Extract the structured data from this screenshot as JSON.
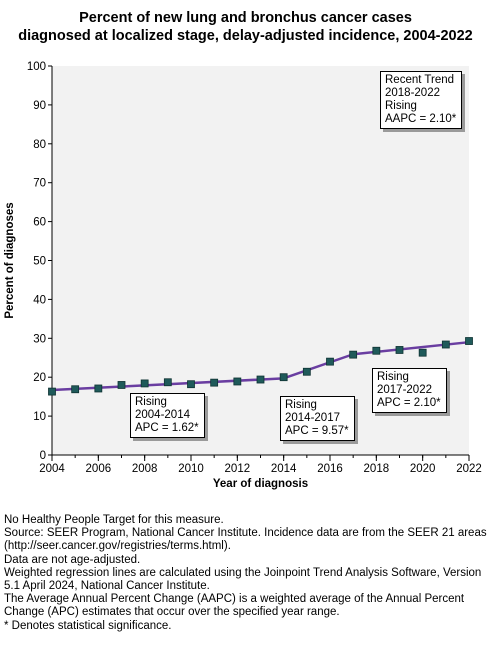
{
  "title_line1": "Percent of new lung and bronchus cancer cases",
  "title_line2": "diagnosed at localized stage, delay-adjusted incidence, 2004-2022",
  "colors": {
    "plot_background": "#f2f2f2",
    "trend_line": "#6a3ea1",
    "marker_fill": "#1f5a5a",
    "marker_stroke": "#0f3333"
  },
  "chart_data": {
    "type": "line",
    "xlabel": "Year of diagnosis",
    "ylabel": "Percent of diagnoses",
    "xlim": [
      2004,
      2022
    ],
    "ylim": [
      0,
      100
    ],
    "x_ticks": [
      2004,
      2006,
      2008,
      2010,
      2012,
      2014,
      2016,
      2018,
      2020,
      2022
    ],
    "y_ticks": [
      0,
      10,
      20,
      30,
      40,
      50,
      60,
      70,
      80,
      90,
      100
    ],
    "grid": false,
    "legend": "none",
    "series": [
      {
        "kind": "observed",
        "marker": "square",
        "x": [
          2004,
          2005,
          2006,
          2007,
          2008,
          2009,
          2010,
          2011,
          2012,
          2013,
          2014,
          2015,
          2016,
          2017,
          2018,
          2019,
          2020,
          2021,
          2022
        ],
        "y": [
          16.3,
          16.9,
          17.1,
          18.0,
          18.4,
          18.7,
          18.2,
          18.6,
          18.9,
          19.4,
          20.0,
          21.4,
          24.0,
          25.8,
          26.8,
          27.0,
          26.3,
          28.4,
          29.3
        ]
      },
      {
        "kind": "trend",
        "x": [
          2004,
          2014,
          2017,
          2022
        ],
        "y": [
          16.7,
          19.7,
          25.9,
          29.0
        ]
      }
    ],
    "annotations": [
      {
        "id": "recent",
        "lines": [
          "Recent Trend",
          "2018-2022",
          "Rising",
          "AAPC =  2.10*"
        ]
      },
      {
        "id": "seg1",
        "lines": [
          "Rising",
          "2004-2014",
          "APC =  1.62*"
        ]
      },
      {
        "id": "seg2",
        "lines": [
          "Rising",
          "2014-2017",
          "APC =  9.57*"
        ]
      },
      {
        "id": "seg3",
        "lines": [
          "Rising",
          "2017-2022",
          "APC =  2.10*"
        ]
      }
    ]
  },
  "footnotes": [
    "No Healthy People Target for this measure.",
    "Source: SEER Program, National Cancer Institute. Incidence data are from the SEER 21 areas (http://seer.cancer.gov/registries/terms.html).",
    "Data are not age-adjusted.",
    "Weighted regression lines are calculated using the Joinpoint Trend Analysis Software, Version 5.1 April 2024, National Cancer Institute.",
    "The Average Annual Percent Change (AAPC) is a weighted average of the Annual Percent Change (APC) estimates that occur over the specified year range.",
    "* Denotes statistical significance."
  ]
}
